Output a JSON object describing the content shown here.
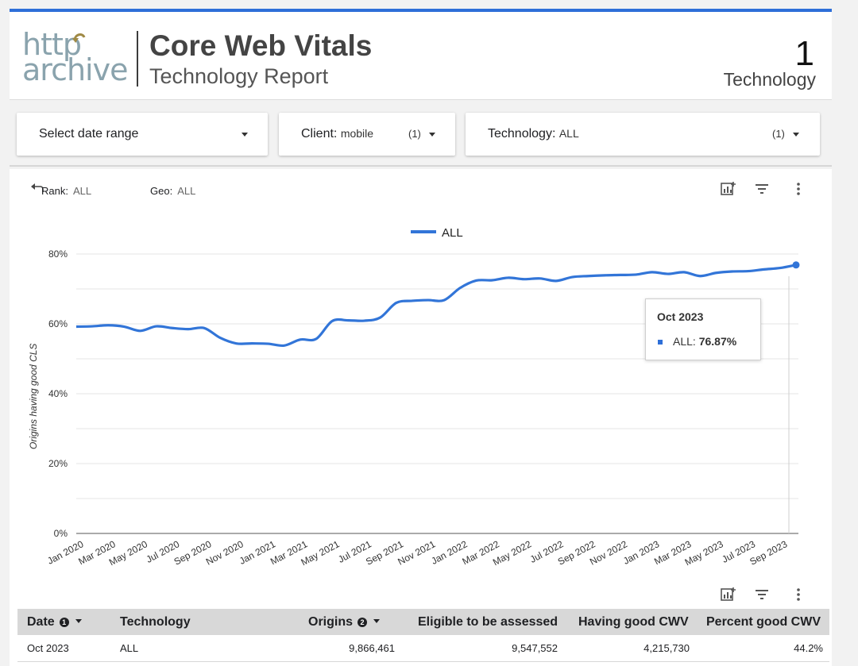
{
  "header": {
    "logo_top": "http",
    "logo_bottom": "archive",
    "title": "Core Web Vitals",
    "subtitle": "Technology Report",
    "count": "1",
    "count_label": "Technology"
  },
  "filters": {
    "date": {
      "label": "Select date range"
    },
    "client": {
      "label": "Client:",
      "value": "mobile",
      "count": "(1)"
    },
    "technology": {
      "label": "Technology:",
      "value": "ALL",
      "count": "(1)"
    }
  },
  "controls": {
    "rank": {
      "label": "Rank:",
      "value": "ALL"
    },
    "geo": {
      "label": "Geo:",
      "value": "ALL"
    }
  },
  "colors": {
    "accent": "#2e6fd8",
    "line": "#3275d8",
    "header_bar": "#2e6fd8"
  },
  "icons": [
    "reset-icon",
    "chart-options-icon",
    "filter-icon",
    "more-vert-icon"
  ],
  "chart_data": {
    "type": "line",
    "ylabel": "Origins having good CLS",
    "xlabel": "",
    "ylim": [
      0,
      80
    ],
    "yticks": [
      "0%",
      "20%",
      "40%",
      "60%",
      "80%"
    ],
    "x_tick_labels": [
      "Jan 2020",
      "Mar 2020",
      "May 2020",
      "Jul 2020",
      "Sep 2020",
      "Nov 2020",
      "Jan 2021",
      "Mar 2021",
      "May 2021",
      "Jul 2021",
      "Sep 2021",
      "Nov 2021",
      "Jan 2022",
      "Mar 2022",
      "May 2022",
      "Jul 2022",
      "Sep 2022",
      "Nov 2022",
      "Jan 2023",
      "Mar 2023",
      "May 2023",
      "Jul 2023",
      "Sep 2023"
    ],
    "legend": "top",
    "grid": true,
    "series": [
      {
        "name": "ALL",
        "x": [
          "Jan 2020",
          "Feb 2020",
          "Mar 2020",
          "Apr 2020",
          "May 2020",
          "Jun 2020",
          "Jul 2020",
          "Aug 2020",
          "Sep 2020",
          "Oct 2020",
          "Nov 2020",
          "Dec 2020",
          "Jan 2021",
          "Feb 2021",
          "Mar 2021",
          "Apr 2021",
          "May 2021",
          "Jun 2021",
          "Jul 2021",
          "Aug 2021",
          "Sep 2021",
          "Oct 2021",
          "Nov 2021",
          "Dec 2021",
          "Jan 2022",
          "Feb 2022",
          "Mar 2022",
          "Apr 2022",
          "May 2022",
          "Jun 2022",
          "Jul 2022",
          "Aug 2022",
          "Sep 2022",
          "Oct 2022",
          "Nov 2022",
          "Dec 2022",
          "Jan 2023",
          "Feb 2023",
          "Mar 2023",
          "Apr 2023",
          "May 2023",
          "Jun 2023",
          "Jul 2023",
          "Aug 2023",
          "Sep 2023",
          "Oct 2023"
        ],
        "values": [
          59.2,
          59.3,
          59.6,
          59.2,
          58.0,
          59.3,
          58.8,
          58.5,
          58.8,
          56.0,
          54.4,
          54.4,
          54.3,
          53.8,
          55.5,
          55.7,
          60.8,
          61.0,
          60.9,
          61.8,
          66.0,
          66.6,
          66.8,
          66.8,
          70.3,
          72.4,
          72.5,
          73.2,
          72.8,
          73.0,
          72.3,
          73.4,
          73.7,
          73.9,
          74.0,
          74.1,
          74.8,
          74.3,
          74.8,
          73.7,
          74.6,
          75.0,
          75.1,
          75.6,
          76.0,
          76.87
        ]
      }
    ]
  },
  "tooltip": {
    "title": "Oct 2023",
    "label": "ALL:",
    "value": "76.87%"
  },
  "table": {
    "headers": {
      "date": "Date",
      "technology": "Technology",
      "origins": "Origins",
      "eligible": "Eligible to be assessed",
      "good": "Having good CWV",
      "percent": "Percent good CWV"
    },
    "rows": [
      {
        "date": "Oct 2023",
        "technology": "ALL",
        "origins": "9,866,461",
        "eligible": "9,547,552",
        "good": "4,215,730",
        "percent": "44.2%"
      }
    ]
  }
}
